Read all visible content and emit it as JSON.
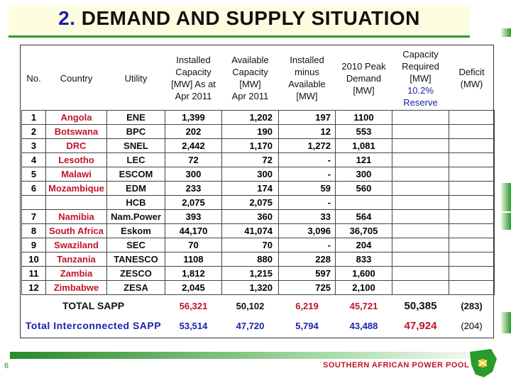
{
  "title": {
    "number": "2.",
    "text": "DEMAND AND SUPPLY SITUATION"
  },
  "headers": {
    "no": "No.",
    "country": "Country",
    "utility": "Utility",
    "installed": [
      "Installed",
      "Capacity",
      "[MW] As at",
      "Apr 2011"
    ],
    "available": [
      "Available",
      "Capacity",
      "[MW]",
      "Apr 2011"
    ],
    "inst_minus": [
      "Installed",
      "minus",
      "Available",
      "[MW]"
    ],
    "peak": [
      "2010 Peak",
      "Demand",
      "[MW]"
    ],
    "cap_req": [
      "Capacity",
      "Required",
      "[MW]",
      "10.2%",
      "Reserve"
    ],
    "deficit": [
      "Deficit",
      "(MW)"
    ]
  },
  "rows": [
    {
      "no": "1",
      "country": "Angola",
      "utility": "ENE",
      "installed": "1,399",
      "available": "1,202",
      "inst_minus": "197",
      "peak": "1100"
    },
    {
      "no": "2",
      "country": "Botswana",
      "utility": "BPC",
      "installed": "202",
      "available": "190",
      "inst_minus": "12",
      "peak": "553"
    },
    {
      "no": "3",
      "country": "DRC",
      "utility": "SNEL",
      "installed": "2,442",
      "available": "1,170",
      "inst_minus": "1,272",
      "peak": "1,081"
    },
    {
      "no": "4",
      "country": "Lesotho",
      "utility": "LEC",
      "installed": "72",
      "available": "72",
      "inst_minus": "-",
      "peak": "121"
    },
    {
      "no": "5",
      "country": "Malawi",
      "utility": "ESCOM",
      "installed": "300",
      "available": "300",
      "inst_minus": "-",
      "peak": "300"
    },
    {
      "no": "6",
      "country": "Mozambique",
      "utility": "EDM",
      "installed": "233",
      "available": "174",
      "inst_minus": "59",
      "peak": "560"
    },
    {
      "no": "",
      "country": "",
      "utility": "HCB",
      "installed": "2,075",
      "available": "2,075",
      "inst_minus": "-",
      "peak": ""
    },
    {
      "no": "7",
      "country": "Namibia",
      "utility": "Nam.Power",
      "installed": "393",
      "available": "360",
      "inst_minus": "33",
      "peak": "564"
    },
    {
      "no": "8",
      "country": "South Africa",
      "utility": "Eskom",
      "installed": "44,170",
      "available": "41,074",
      "inst_minus": "3,096",
      "peak": "36,705"
    },
    {
      "no": "9",
      "country": "Swaziland",
      "utility": "SEC",
      "installed": "70",
      "available": "70",
      "inst_minus": "-",
      "peak": "204"
    },
    {
      "no": "10",
      "country": "Tanzania",
      "utility": "TANESCO",
      "installed": "1108",
      "available": "880",
      "inst_minus": "228",
      "peak": "833"
    },
    {
      "no": "11",
      "country": "Zambia",
      "utility": "ZESCO",
      "installed": "1,812",
      "available": "1,215",
      "inst_minus": "597",
      "peak": "1,600"
    },
    {
      "no": "12",
      "country": "Zimbabwe",
      "utility": "ZESA",
      "installed": "2,045",
      "available": "1,320",
      "inst_minus": "725",
      "peak": "2,100"
    }
  ],
  "total_sapp": {
    "label": "TOTAL SAPP",
    "installed": "56,321",
    "available": "50,102",
    "inst_minus": "6,219",
    "peak": "45,721",
    "cap_req": "50,385",
    "deficit": "(283)"
  },
  "total_interconnected": {
    "label": "Total Interconnected SAPP",
    "installed": "53,514",
    "available": "47,720",
    "inst_minus": "5,794",
    "peak": "43,488",
    "cap_req": "47,924",
    "deficit": "(204)"
  },
  "footer": {
    "page": "6",
    "org": "SOUTHERN AFRICAN POWER POOL"
  },
  "colors": {
    "accent_green": "#2a9a2a",
    "country_red": "#c0142a",
    "header_blue": "#1a22a8"
  }
}
